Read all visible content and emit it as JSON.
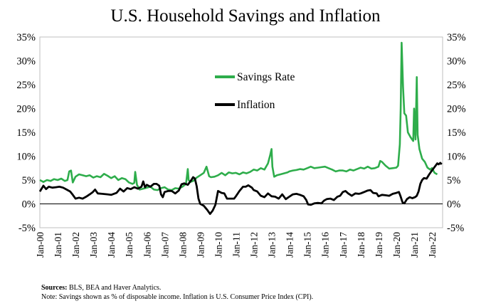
{
  "chart_data": {
    "type": "line",
    "title": "U.S. Household Savings and Inflation",
    "y_left": {
      "min": -5,
      "max": 35,
      "ticks": [
        "35%",
        "30%",
        "25%",
        "20%",
        "15%",
        "10%",
        "5%",
        "0%",
        "-5%"
      ]
    },
    "y_right": {
      "min": -5,
      "max": 35,
      "ticks": [
        "35%",
        "30%",
        "25%",
        "20%",
        "15%",
        "10%",
        "5%",
        "0%",
        "-5%"
      ]
    },
    "x_start_year": 2000,
    "x_end_year": 2022.6,
    "x_ticks": [
      "Jan-00",
      "Jan-01",
      "Jan-02",
      "Jan-03",
      "Jan-04",
      "Jan-05",
      "Jan-06",
      "Jan-07",
      "Jan-08",
      "Jan-09",
      "Jan-10",
      "Jan-11",
      "Jan-12",
      "Jan-13",
      "Jan-14",
      "Jan-15",
      "Jan-16",
      "Jan-17",
      "Jan-18",
      "Jan-19",
      "Jan-20",
      "Jan-21",
      "Jan-22"
    ],
    "series": [
      {
        "name": "Savings Rate",
        "color": "#2ead4b",
        "points": [
          [
            2000.0,
            5.0
          ],
          [
            2000.2,
            4.6
          ],
          [
            2000.4,
            5.0
          ],
          [
            2000.6,
            4.8
          ],
          [
            2000.8,
            5.2
          ],
          [
            2001.0,
            5.0
          ],
          [
            2001.2,
            5.3
          ],
          [
            2001.4,
            4.8
          ],
          [
            2001.55,
            5.0
          ],
          [
            2001.65,
            6.8
          ],
          [
            2001.75,
            7.0
          ],
          [
            2001.85,
            4.5
          ],
          [
            2002.0,
            5.7
          ],
          [
            2002.2,
            6.2
          ],
          [
            2002.4,
            6.0
          ],
          [
            2002.6,
            5.8
          ],
          [
            2002.8,
            6.0
          ],
          [
            2003.0,
            5.5
          ],
          [
            2003.2,
            5.8
          ],
          [
            2003.4,
            5.6
          ],
          [
            2003.6,
            6.3
          ],
          [
            2003.8,
            5.9
          ],
          [
            2004.0,
            5.4
          ],
          [
            2004.2,
            5.8
          ],
          [
            2004.4,
            5.0
          ],
          [
            2004.6,
            5.4
          ],
          [
            2004.8,
            5.2
          ],
          [
            2005.0,
            4.5
          ],
          [
            2005.2,
            4.2
          ],
          [
            2005.3,
            4.4
          ],
          [
            2005.35,
            6.7
          ],
          [
            2005.45,
            4.0
          ],
          [
            2005.6,
            3.0
          ],
          [
            2005.8,
            3.2
          ],
          [
            2006.0,
            3.4
          ],
          [
            2006.2,
            3.6
          ],
          [
            2006.4,
            3.0
          ],
          [
            2006.6,
            2.9
          ],
          [
            2006.8,
            3.3
          ],
          [
            2007.0,
            3.5
          ],
          [
            2007.2,
            3.0
          ],
          [
            2007.4,
            2.9
          ],
          [
            2007.6,
            3.3
          ],
          [
            2007.8,
            3.2
          ],
          [
            2008.0,
            3.6
          ],
          [
            2008.2,
            4.2
          ],
          [
            2008.3,
            7.3
          ],
          [
            2008.35,
            5.0
          ],
          [
            2008.45,
            4.6
          ],
          [
            2008.6,
            4.8
          ],
          [
            2008.8,
            5.5
          ],
          [
            2009.0,
            6.0
          ],
          [
            2009.2,
            6.5
          ],
          [
            2009.35,
            7.8
          ],
          [
            2009.5,
            5.8
          ],
          [
            2009.6,
            5.6
          ],
          [
            2009.8,
            5.7
          ],
          [
            2010.0,
            6.0
          ],
          [
            2010.2,
            6.5
          ],
          [
            2010.4,
            6.0
          ],
          [
            2010.6,
            6.6
          ],
          [
            2010.8,
            6.4
          ],
          [
            2011.0,
            6.5
          ],
          [
            2011.2,
            6.2
          ],
          [
            2011.4,
            6.6
          ],
          [
            2011.6,
            6.4
          ],
          [
            2011.8,
            6.7
          ],
          [
            2012.0,
            7.2
          ],
          [
            2012.2,
            7.0
          ],
          [
            2012.4,
            7.5
          ],
          [
            2012.6,
            7.2
          ],
          [
            2012.8,
            8.5
          ],
          [
            2012.92,
            10.2
          ],
          [
            2013.0,
            11.5
          ],
          [
            2013.05,
            7.8
          ],
          [
            2013.15,
            5.7
          ],
          [
            2013.3,
            6.0
          ],
          [
            2013.5,
            6.2
          ],
          [
            2013.7,
            6.4
          ],
          [
            2013.9,
            6.6
          ],
          [
            2014.0,
            6.8
          ],
          [
            2014.2,
            7.0
          ],
          [
            2014.4,
            7.1
          ],
          [
            2014.6,
            7.3
          ],
          [
            2014.8,
            7.2
          ],
          [
            2015.0,
            7.5
          ],
          [
            2015.2,
            7.8
          ],
          [
            2015.4,
            7.5
          ],
          [
            2015.6,
            7.6
          ],
          [
            2015.8,
            7.7
          ],
          [
            2016.0,
            7.8
          ],
          [
            2016.2,
            7.5
          ],
          [
            2016.4,
            7.2
          ],
          [
            2016.6,
            6.8
          ],
          [
            2016.8,
            7.0
          ],
          [
            2017.0,
            7.0
          ],
          [
            2017.2,
            6.8
          ],
          [
            2017.4,
            7.2
          ],
          [
            2017.6,
            7.0
          ],
          [
            2017.8,
            7.3
          ],
          [
            2018.0,
            7.6
          ],
          [
            2018.2,
            7.4
          ],
          [
            2018.4,
            7.8
          ],
          [
            2018.6,
            7.4
          ],
          [
            2018.8,
            7.5
          ],
          [
            2019.0,
            7.8
          ],
          [
            2019.1,
            9.0
          ],
          [
            2019.2,
            8.8
          ],
          [
            2019.4,
            8.0
          ],
          [
            2019.6,
            7.4
          ],
          [
            2019.8,
            7.5
          ],
          [
            2020.0,
            7.6
          ],
          [
            2020.1,
            8.0
          ],
          [
            2020.2,
            12.5
          ],
          [
            2020.25,
            20.0
          ],
          [
            2020.3,
            33.8
          ],
          [
            2020.38,
            24.5
          ],
          [
            2020.45,
            19.0
          ],
          [
            2020.55,
            18.5
          ],
          [
            2020.65,
            15.0
          ],
          [
            2020.8,
            14.0
          ],
          [
            2020.95,
            13.2
          ],
          [
            2021.0,
            20.0
          ],
          [
            2021.08,
            13.5
          ],
          [
            2021.15,
            26.6
          ],
          [
            2021.2,
            14.5
          ],
          [
            2021.3,
            11.5
          ],
          [
            2021.45,
            9.5
          ],
          [
            2021.6,
            8.8
          ],
          [
            2021.75,
            7.6
          ],
          [
            2021.9,
            7.2
          ],
          [
            2022.0,
            7.5
          ],
          [
            2022.15,
            6.5
          ],
          [
            2022.3,
            6.2
          ]
        ]
      },
      {
        "name": "Inflation",
        "color": "#000000",
        "points": [
          [
            2000.0,
            2.6
          ],
          [
            2000.1,
            3.2
          ],
          [
            2000.2,
            3.8
          ],
          [
            2000.35,
            3.1
          ],
          [
            2000.5,
            3.6
          ],
          [
            2000.7,
            3.4
          ],
          [
            2000.9,
            3.5
          ],
          [
            2001.1,
            3.6
          ],
          [
            2001.3,
            3.4
          ],
          [
            2001.5,
            3.0
          ],
          [
            2001.7,
            2.6
          ],
          [
            2001.85,
            1.9
          ],
          [
            2002.0,
            1.1
          ],
          [
            2002.2,
            1.3
          ],
          [
            2002.4,
            1.1
          ],
          [
            2002.6,
            1.5
          ],
          [
            2002.8,
            2.0
          ],
          [
            2002.95,
            2.4
          ],
          [
            2003.1,
            3.0
          ],
          [
            2003.25,
            2.2
          ],
          [
            2003.5,
            2.1
          ],
          [
            2003.8,
            2.0
          ],
          [
            2004.0,
            1.9
          ],
          [
            2004.3,
            2.3
          ],
          [
            2004.5,
            3.2
          ],
          [
            2004.7,
            2.6
          ],
          [
            2004.9,
            3.3
          ],
          [
            2005.1,
            3.1
          ],
          [
            2005.3,
            3.5
          ],
          [
            2005.5,
            3.2
          ],
          [
            2005.7,
            3.6
          ],
          [
            2005.8,
            4.7
          ],
          [
            2005.9,
            3.5
          ],
          [
            2006.0,
            4.0
          ],
          [
            2006.2,
            3.6
          ],
          [
            2006.4,
            4.2
          ],
          [
            2006.55,
            4.2
          ],
          [
            2006.7,
            3.8
          ],
          [
            2006.8,
            2.0
          ],
          [
            2006.9,
            1.4
          ],
          [
            2007.0,
            2.5
          ],
          [
            2007.2,
            2.7
          ],
          [
            2007.4,
            2.7
          ],
          [
            2007.6,
            2.2
          ],
          [
            2007.8,
            2.8
          ],
          [
            2007.95,
            4.1
          ],
          [
            2008.1,
            4.3
          ],
          [
            2008.3,
            4.0
          ],
          [
            2008.5,
            5.0
          ],
          [
            2008.6,
            5.6
          ],
          [
            2008.7,
            5.3
          ],
          [
            2008.8,
            3.7
          ],
          [
            2008.9,
            1.1
          ],
          [
            2009.0,
            0.0
          ],
          [
            2009.2,
            -0.4
          ],
          [
            2009.4,
            -1.3
          ],
          [
            2009.55,
            -2.1
          ],
          [
            2009.7,
            -1.4
          ],
          [
            2009.85,
            -0.2
          ],
          [
            2010.0,
            2.7
          ],
          [
            2010.2,
            2.3
          ],
          [
            2010.35,
            2.2
          ],
          [
            2010.5,
            1.1
          ],
          [
            2010.7,
            1.1
          ],
          [
            2010.9,
            1.1
          ],
          [
            2011.0,
            1.6
          ],
          [
            2011.2,
            2.7
          ],
          [
            2011.4,
            3.6
          ],
          [
            2011.55,
            3.6
          ],
          [
            2011.7,
            3.9
          ],
          [
            2011.9,
            3.4
          ],
          [
            2012.0,
            2.9
          ],
          [
            2012.2,
            2.6
          ],
          [
            2012.4,
            1.7
          ],
          [
            2012.6,
            1.4
          ],
          [
            2012.8,
            2.2
          ],
          [
            2013.0,
            1.6
          ],
          [
            2013.2,
            1.5
          ],
          [
            2013.4,
            1.1
          ],
          [
            2013.6,
            2.0
          ],
          [
            2013.8,
            1.0
          ],
          [
            2014.0,
            1.5
          ],
          [
            2014.2,
            2.0
          ],
          [
            2014.4,
            2.1
          ],
          [
            2014.6,
            1.9
          ],
          [
            2014.8,
            1.6
          ],
          [
            2014.95,
            0.8
          ],
          [
            2015.05,
            -0.1
          ],
          [
            2015.2,
            -0.2
          ],
          [
            2015.4,
            0.1
          ],
          [
            2015.6,
            0.2
          ],
          [
            2015.8,
            0.1
          ],
          [
            2015.95,
            0.7
          ],
          [
            2016.1,
            1.0
          ],
          [
            2016.3,
            1.1
          ],
          [
            2016.5,
            0.8
          ],
          [
            2016.7,
            1.5
          ],
          [
            2016.85,
            1.7
          ],
          [
            2017.0,
            2.5
          ],
          [
            2017.15,
            2.7
          ],
          [
            2017.3,
            2.2
          ],
          [
            2017.5,
            1.7
          ],
          [
            2017.7,
            2.2
          ],
          [
            2017.9,
            2.1
          ],
          [
            2018.0,
            2.2
          ],
          [
            2018.2,
            2.5
          ],
          [
            2018.4,
            2.8
          ],
          [
            2018.55,
            2.9
          ],
          [
            2018.7,
            2.3
          ],
          [
            2018.9,
            2.2
          ],
          [
            2019.0,
            1.6
          ],
          [
            2019.2,
            1.9
          ],
          [
            2019.4,
            1.8
          ],
          [
            2019.6,
            1.7
          ],
          [
            2019.8,
            2.1
          ],
          [
            2020.0,
            2.3
          ],
          [
            2020.15,
            2.5
          ],
          [
            2020.25,
            1.5
          ],
          [
            2020.35,
            0.3
          ],
          [
            2020.45,
            0.1
          ],
          [
            2020.6,
            1.0
          ],
          [
            2020.75,
            1.4
          ],
          [
            2020.9,
            1.2
          ],
          [
            2021.05,
            1.4
          ],
          [
            2021.15,
            1.7
          ],
          [
            2021.25,
            2.6
          ],
          [
            2021.35,
            4.2
          ],
          [
            2021.45,
            5.0
          ],
          [
            2021.55,
            5.4
          ],
          [
            2021.7,
            5.3
          ],
          [
            2021.85,
            6.2
          ],
          [
            2022.0,
            7.0
          ],
          [
            2022.1,
            7.5
          ],
          [
            2022.2,
            8.0
          ],
          [
            2022.3,
            8.5
          ],
          [
            2022.38,
            8.3
          ],
          [
            2022.47,
            8.6
          ],
          [
            2022.55,
            8.3
          ]
        ]
      }
    ],
    "legend": [
      "Savings Rate",
      "Inflation"
    ]
  },
  "footer": {
    "source_label": "Sources:",
    "source_text": " BLS, BEA and Haver Analytics.",
    "note": "Note: Savings shown as % of disposable income. Inflation is U.S. Consumer Price Index (CPI)."
  }
}
